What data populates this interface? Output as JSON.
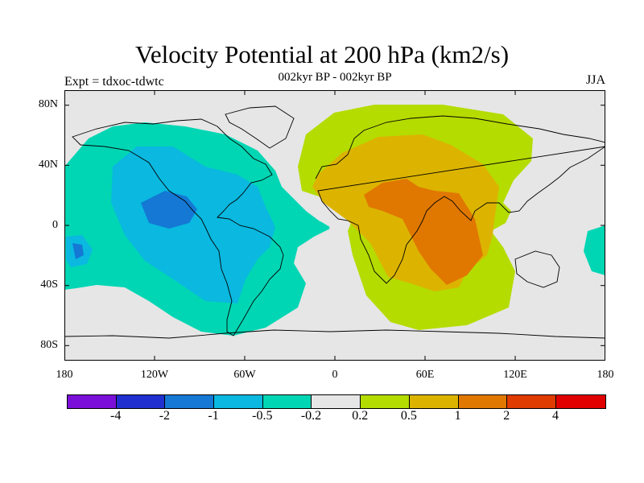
{
  "header": {
    "title": "Velocity Potential at 200 hPa (km2/s)",
    "subtitle": "002kyr BP - 002kyr BP",
    "experiment": "Expt = tdxoc-tdwtc",
    "season": "JJA"
  },
  "map": {
    "projection": "cylindrical-equidistant",
    "lon_range": [
      -180,
      180
    ],
    "lat_range": [
      -90,
      90
    ],
    "lat_ticks": [
      "80N",
      "40N",
      "0",
      "40S",
      "80S"
    ],
    "lon_ticks": [
      "180",
      "120W",
      "60W",
      "0",
      "60E",
      "120E",
      "180"
    ],
    "background_color": "#e6e6e6"
  },
  "colorbar": {
    "colors": [
      "#7a10d8",
      "#2030d0",
      "#1478d4",
      "#0ab8e0",
      "#00d6b4",
      "#e6e6e6",
      "#b4dc00",
      "#dcb400",
      "#e07800",
      "#e03c00",
      "#e00000"
    ],
    "labels": [
      "-4",
      "-2",
      "-1",
      "-0.5",
      "-0.2",
      "0.2",
      "0.5",
      "1",
      "2",
      "4"
    ]
  }
}
